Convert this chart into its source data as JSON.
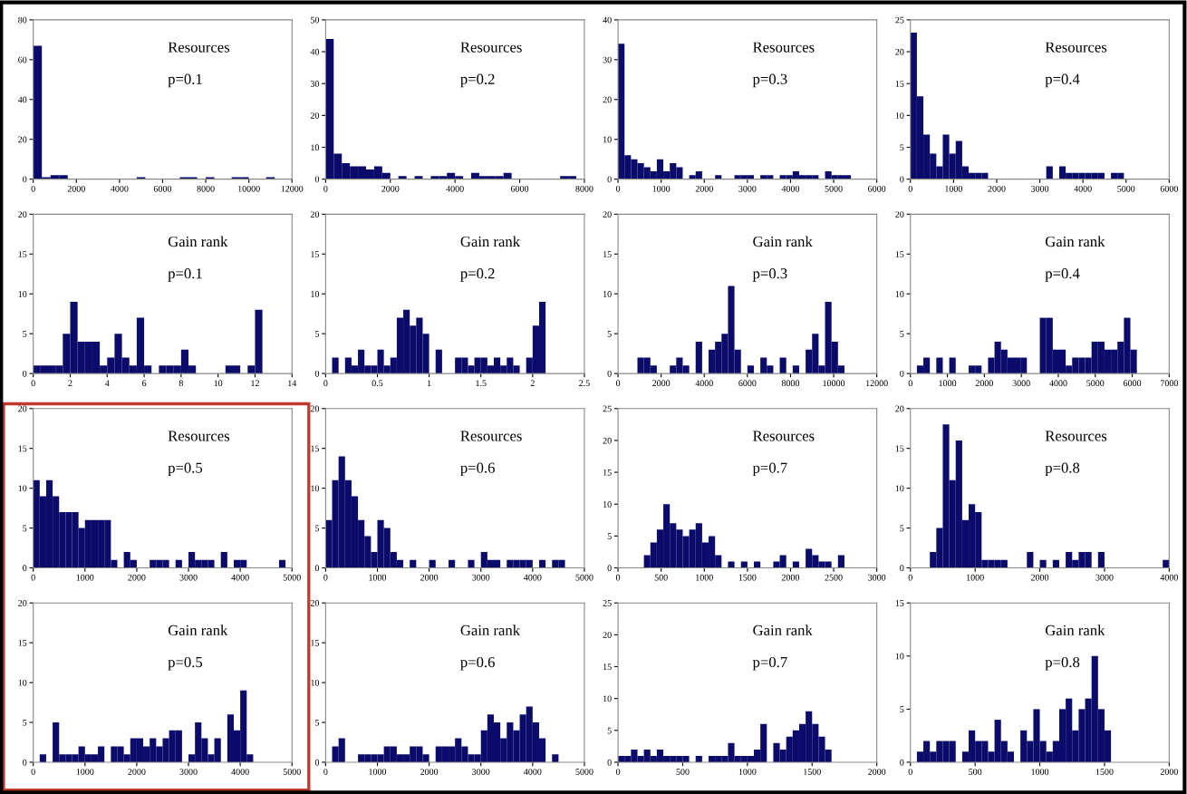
{
  "chart_data": [
    {
      "type": "histogram",
      "annotations": [
        "Resources",
        "p=0.1"
      ],
      "color": "#0b0b6b",
      "xlim": [
        0,
        12000
      ],
      "xticks": [
        0,
        2000,
        4000,
        6000,
        8000,
        10000,
        12000
      ],
      "ylim": [
        0,
        80
      ],
      "yticks": [
        0,
        20,
        40,
        60,
        80
      ],
      "bins": [
        0,
        400,
        800,
        1200,
        1600,
        2000,
        2400,
        2800,
        3200,
        3600,
        4000,
        4400,
        4800,
        5200,
        5600,
        6000,
        6400,
        6800,
        7200,
        7600,
        8000,
        8400,
        8800,
        9200,
        9600,
        10000,
        10400,
        10800,
        11200
      ],
      "values": [
        67,
        1,
        2,
        2,
        0,
        0,
        0,
        0,
        0,
        0,
        0,
        0,
        1,
        0,
        0,
        0,
        0,
        1,
        1,
        0,
        1,
        0,
        0,
        1,
        1,
        0,
        0,
        1
      ]
    },
    {
      "type": "histogram",
      "annotations": [
        "Resources",
        "p=0.2"
      ],
      "color": "#0b0b6b",
      "xlim": [
        0,
        8000
      ],
      "xticks": [
        0,
        2000,
        4000,
        6000,
        8000
      ],
      "ylim": [
        0,
        50
      ],
      "yticks": [
        0,
        10,
        20,
        30,
        40,
        50
      ],
      "bins": [
        0,
        250,
        500,
        750,
        1000,
        1250,
        1500,
        1750,
        2000,
        2250,
        2500,
        2750,
        3000,
        3250,
        3500,
        3750,
        4000,
        4250,
        4500,
        4750,
        5000,
        5250,
        5500,
        5750,
        6000,
        6250,
        6500,
        6750,
        7000,
        7250,
        7500,
        7750,
        8000
      ],
      "values": [
        44,
        8,
        5,
        4,
        4,
        3,
        4,
        2,
        0,
        1,
        0,
        1,
        0,
        1,
        1,
        2,
        1,
        0,
        2,
        1,
        1,
        1,
        2,
        0,
        0,
        0,
        0,
        0,
        0,
        1,
        1,
        0
      ]
    },
    {
      "type": "histogram",
      "annotations": [
        "Resources",
        "p=0.3"
      ],
      "color": "#0b0b6b",
      "xlim": [
        0,
        6000
      ],
      "xticks": [
        0,
        1000,
        2000,
        3000,
        4000,
        5000,
        6000
      ],
      "ylim": [
        0,
        40
      ],
      "yticks": [
        0,
        10,
        20,
        30,
        40
      ],
      "bins": [
        0,
        150,
        300,
        450,
        600,
        750,
        900,
        1050,
        1200,
        1350,
        1500,
        1650,
        1800,
        1950,
        2100,
        2250,
        2400,
        2550,
        2700,
        2850,
        3000,
        3150,
        3300,
        3450,
        3600,
        3750,
        3900,
        4050,
        4200,
        4350,
        4500,
        4650,
        4800,
        4950,
        5100,
        5250,
        5400,
        5550,
        5700,
        5850,
        6000
      ],
      "values": [
        34,
        6,
        5,
        4,
        3,
        2,
        5,
        2,
        4,
        3,
        0,
        1,
        2,
        0,
        0,
        1,
        0,
        0,
        1,
        1,
        1,
        0,
        1,
        1,
        0,
        1,
        1,
        2,
        1,
        1,
        1,
        0,
        2,
        1,
        1,
        1,
        0,
        0,
        0,
        0
      ]
    },
    {
      "type": "histogram",
      "annotations": [
        "Resources",
        "p=0.4"
      ],
      "color": "#0b0b6b",
      "xlim": [
        0,
        6000
      ],
      "xticks": [
        0,
        1000,
        2000,
        3000,
        4000,
        5000,
        6000
      ],
      "ylim": [
        0,
        25
      ],
      "yticks": [
        0,
        5,
        10,
        15,
        20,
        25
      ],
      "bins": [
        0,
        150,
        300,
        450,
        600,
        750,
        900,
        1050,
        1200,
        1350,
        1500,
        1650,
        1800,
        1950,
        2100,
        2250,
        2400,
        2550,
        2700,
        2850,
        3000,
        3150,
        3300,
        3450,
        3600,
        3750,
        3900,
        4050,
        4200,
        4350,
        4500,
        4650,
        4800,
        4950,
        5100,
        5250,
        5400,
        5550,
        5700,
        5850,
        6000
      ],
      "values": [
        23,
        13,
        7,
        4,
        2,
        7,
        4,
        6,
        2,
        1,
        1,
        1,
        0,
        0,
        0,
        0,
        0,
        0,
        0,
        0,
        0,
        2,
        0,
        2,
        1,
        1,
        1,
        1,
        1,
        1,
        0,
        1,
        1,
        0,
        0,
        0,
        0,
        0,
        0,
        0
      ]
    },
    {
      "type": "histogram",
      "annotations": [
        "Gain rank",
        "p=0.1"
      ],
      "color": "#0b0b6b",
      "xlim": [
        0,
        14
      ],
      "xticks": [
        0,
        2,
        4,
        6,
        8,
        10,
        12,
        14
      ],
      "ylim": [
        0,
        20
      ],
      "yticks": [
        0,
        5,
        10,
        15,
        20
      ],
      "bins": [
        0,
        0.4,
        0.8,
        1.2,
        1.6,
        2,
        2.4,
        2.8,
        3.2,
        3.6,
        4,
        4.4,
        4.8,
        5.2,
        5.6,
        6,
        6.4,
        6.8,
        7.2,
        7.6,
        8,
        8.4,
        8.8,
        9.2,
        9.6,
        10,
        10.4,
        10.8,
        11.2,
        11.6,
        12,
        12.4,
        12.8,
        13.2,
        13.6,
        14
      ],
      "values": [
        1,
        1,
        1,
        1,
        5,
        9,
        4,
        4,
        4,
        1,
        2,
        5,
        2,
        1,
        7,
        1,
        0,
        1,
        1,
        1,
        3,
        1,
        0,
        0,
        0,
        0,
        1,
        1,
        0,
        1,
        8,
        0,
        0,
        0,
        0
      ]
    },
    {
      "type": "histogram",
      "annotations": [
        "Gain rank",
        "p=0.2"
      ],
      "color": "#0b0b6b",
      "xlim": [
        0,
        2.5
      ],
      "xticks": [
        0,
        0.5,
        1,
        1.5,
        2,
        2.5
      ],
      "ylim": [
        0,
        20
      ],
      "yticks": [
        0,
        5,
        10,
        15,
        20
      ],
      "bins": [
        0,
        0.0625,
        0.125,
        0.1875,
        0.25,
        0.3125,
        0.375,
        0.4375,
        0.5,
        0.5625,
        0.625,
        0.6875,
        0.75,
        0.8125,
        0.875,
        0.9375,
        1,
        1.0625,
        1.125,
        1.1875,
        1.25,
        1.3125,
        1.375,
        1.4375,
        1.5,
        1.5625,
        1.625,
        1.6875,
        1.75,
        1.8125,
        1.875,
        1.9375,
        2,
        2.0625,
        2.125,
        2.1875,
        2.25,
        2.3125,
        2.375,
        2.4375,
        2.5
      ],
      "values": [
        0,
        2,
        0,
        2,
        1,
        3,
        1,
        1,
        3,
        1,
        2,
        7,
        8,
        6,
        7,
        5,
        0,
        3,
        0,
        0,
        2,
        2,
        1,
        2,
        2,
        1,
        2,
        1,
        2,
        1,
        0,
        2,
        6,
        9,
        0,
        0,
        0,
        0,
        0,
        0
      ]
    },
    {
      "type": "histogram",
      "annotations": [
        "Gain rank",
        "p=0.3"
      ],
      "color": "#0b0b6b",
      "xlim": [
        0,
        12000
      ],
      "xticks": [
        0,
        2000,
        4000,
        6000,
        8000,
        10000,
        12000
      ],
      "ylim": [
        0,
        20
      ],
      "yticks": [
        0,
        5,
        10,
        15,
        20
      ],
      "bins": [
        0,
        300,
        600,
        900,
        1200,
        1500,
        1800,
        2100,
        2400,
        2700,
        3000,
        3300,
        3600,
        3900,
        4200,
        4500,
        4800,
        5100,
        5400,
        5700,
        6000,
        6300,
        6600,
        6900,
        7200,
        7500,
        7800,
        8100,
        8400,
        8700,
        9000,
        9300,
        9600,
        9900,
        10200,
        10500,
        10800,
        11100,
        11400,
        11700,
        12000
      ],
      "values": [
        0,
        0,
        0,
        2,
        2,
        1,
        0,
        0,
        1,
        2,
        1,
        0,
        4,
        0,
        3,
        4,
        5,
        11,
        3,
        0,
        1,
        0,
        2,
        1,
        0,
        2,
        0,
        1,
        0,
        3,
        5,
        1,
        9,
        4,
        1,
        0,
        0,
        0,
        0,
        0
      ]
    },
    {
      "type": "histogram",
      "annotations": [
        "Gain rank",
        "p=0.4"
      ],
      "color": "#0b0b6b",
      "xlim": [
        0,
        7000
      ],
      "xticks": [
        0,
        1000,
        2000,
        3000,
        4000,
        5000,
        6000,
        7000
      ],
      "ylim": [
        0,
        20
      ],
      "yticks": [
        0,
        5,
        10,
        15,
        20
      ],
      "bins": [
        0,
        175,
        350,
        525,
        700,
        875,
        1050,
        1225,
        1400,
        1575,
        1750,
        1925,
        2100,
        2275,
        2450,
        2625,
        2800,
        2975,
        3150,
        3325,
        3500,
        3675,
        3850,
        4025,
        4200,
        4375,
        4550,
        4725,
        4900,
        5075,
        5250,
        5425,
        5600,
        5775,
        5950,
        6125,
        6300,
        6475,
        6650,
        6825,
        7000
      ],
      "values": [
        0,
        1,
        2,
        0,
        2,
        0,
        2,
        0,
        0,
        1,
        1,
        0,
        2,
        4,
        3,
        2,
        2,
        2,
        0,
        0,
        7,
        7,
        3,
        3,
        1,
        2,
        2,
        2,
        4,
        4,
        3,
        3,
        4,
        7,
        3,
        0,
        0,
        0,
        0,
        0
      ]
    },
    {
      "type": "histogram",
      "annotations": [
        "Resources",
        "p=0.5"
      ],
      "color": "#0b0b6b",
      "xlim": [
        0,
        5000
      ],
      "xticks": [
        0,
        1000,
        2000,
        3000,
        4000,
        5000
      ],
      "ylim": [
        0,
        20
      ],
      "yticks": [
        0,
        5,
        10,
        15,
        20
      ],
      "bins": [
        0,
        125,
        250,
        375,
        500,
        625,
        750,
        875,
        1000,
        1125,
        1250,
        1375,
        1500,
        1625,
        1750,
        1875,
        2000,
        2125,
        2250,
        2375,
        2500,
        2625,
        2750,
        2875,
        3000,
        3125,
        3250,
        3375,
        3500,
        3625,
        3750,
        3875,
        4000,
        4125,
        4250,
        4375,
        4500,
        4625,
        4750,
        4875,
        5000
      ],
      "values": [
        11,
        9,
        11,
        9,
        7,
        7,
        7,
        5,
        6,
        6,
        6,
        6,
        1,
        0,
        2,
        1,
        0,
        0,
        1,
        1,
        1,
        0,
        1,
        0,
        2,
        1,
        1,
        1,
        0,
        2,
        0,
        1,
        1,
        0,
        0,
        0,
        0,
        0,
        1,
        0
      ]
    },
    {
      "type": "histogram",
      "annotations": [
        "Resources",
        "p=0.6"
      ],
      "color": "#0b0b6b",
      "xlim": [
        0,
        5000
      ],
      "xticks": [
        0,
        1000,
        2000,
        3000,
        4000,
        5000
      ],
      "ylim": [
        0,
        20
      ],
      "yticks": [
        0,
        5,
        10,
        15,
        20
      ],
      "bins": [
        0,
        125,
        250,
        375,
        500,
        625,
        750,
        875,
        1000,
        1125,
        1250,
        1375,
        1500,
        1625,
        1750,
        1875,
        2000,
        2125,
        2250,
        2375,
        2500,
        2625,
        2750,
        2875,
        3000,
        3125,
        3250,
        3375,
        3500,
        3625,
        3750,
        3875,
        4000,
        4125,
        4250,
        4375,
        4500,
        4625,
        4750,
        4875,
        5000
      ],
      "values": [
        6,
        11,
        14,
        11,
        9,
        6,
        4,
        2,
        6,
        5,
        2,
        1,
        0,
        1,
        0,
        0,
        1,
        0,
        0,
        1,
        0,
        0,
        1,
        0,
        2,
        1,
        1,
        0,
        1,
        1,
        1,
        1,
        0,
        1,
        0,
        1,
        1,
        0,
        0,
        0
      ]
    },
    {
      "type": "histogram",
      "annotations": [
        "Resources",
        "p=0.7"
      ],
      "color": "#0b0b6b",
      "xlim": [
        0,
        3000
      ],
      "xticks": [
        0,
        500,
        1000,
        1500,
        2000,
        2500,
        3000
      ],
      "ylim": [
        0,
        25
      ],
      "yticks": [
        0,
        5,
        10,
        15,
        20,
        25
      ],
      "bins": [
        0,
        75,
        150,
        225,
        300,
        375,
        450,
        525,
        600,
        675,
        750,
        825,
        900,
        975,
        1050,
        1125,
        1200,
        1275,
        1350,
        1425,
        1500,
        1575,
        1650,
        1725,
        1800,
        1875,
        1950,
        2025,
        2100,
        2175,
        2250,
        2325,
        2400,
        2475,
        2550,
        2625,
        2700,
        2775,
        2850,
        2925,
        3000
      ],
      "values": [
        0,
        0,
        0,
        0,
        2,
        4,
        6,
        10,
        7,
        6,
        5,
        6,
        7,
        4,
        5,
        2,
        0,
        1,
        0,
        1,
        0,
        1,
        0,
        0,
        1,
        2,
        0,
        1,
        0,
        3,
        2,
        1,
        1,
        0,
        2,
        0,
        0,
        0,
        0,
        0
      ]
    },
    {
      "type": "histogram",
      "annotations": [
        "Resources",
        "p=0.8"
      ],
      "color": "#0b0b6b",
      "xlim": [
        0,
        4000
      ],
      "xticks": [
        0,
        1000,
        2000,
        3000,
        4000
      ],
      "ylim": [
        0,
        20
      ],
      "yticks": [
        0,
        5,
        10,
        15,
        20
      ],
      "bins": [
        0,
        100,
        200,
        300,
        400,
        500,
        600,
        700,
        800,
        900,
        1000,
        1100,
        1200,
        1300,
        1400,
        1500,
        1600,
        1700,
        1800,
        1900,
        2000,
        2100,
        2200,
        2300,
        2400,
        2500,
        2600,
        2700,
        2800,
        2900,
        3000,
        3100,
        3200,
        3300,
        3400,
        3500,
        3600,
        3700,
        3800,
        3900,
        4000
      ],
      "values": [
        0,
        0,
        0,
        2,
        5,
        18,
        11,
        16,
        6,
        8,
        7,
        1,
        1,
        1,
        1,
        0,
        0,
        0,
        2,
        0,
        1,
        0,
        1,
        0,
        2,
        1,
        2,
        2,
        0,
        2,
        0,
        0,
        0,
        0,
        0,
        0,
        0,
        0,
        0,
        1
      ]
    },
    {
      "type": "histogram",
      "annotations": [
        "Gain rank",
        "p=0.5"
      ],
      "color": "#0b0b6b",
      "xlim": [
        0,
        5000
      ],
      "xticks": [
        0,
        1000,
        2000,
        3000,
        4000,
        5000
      ],
      "ylim": [
        0,
        20
      ],
      "yticks": [
        0,
        5,
        10,
        15,
        20
      ],
      "bins": [
        0,
        125,
        250,
        375,
        500,
        625,
        750,
        875,
        1000,
        1125,
        1250,
        1375,
        1500,
        1625,
        1750,
        1875,
        2000,
        2125,
        2250,
        2375,
        2500,
        2625,
        2750,
        2875,
        3000,
        3125,
        3250,
        3375,
        3500,
        3625,
        3750,
        3875,
        4000,
        4125,
        4250,
        4375,
        4500,
        4625,
        4750,
        4875,
        5000
      ],
      "values": [
        0,
        1,
        0,
        5,
        1,
        1,
        1,
        2,
        1,
        1,
        2,
        0,
        2,
        2,
        1,
        3,
        3,
        2,
        3,
        2,
        3,
        4,
        4,
        0,
        1,
        5,
        3,
        1,
        3,
        0,
        6,
        4,
        9,
        1,
        0,
        0,
        0,
        0,
        0,
        0
      ]
    },
    {
      "type": "histogram",
      "annotations": [
        "Gain rank",
        "p=0.6"
      ],
      "color": "#0b0b6b",
      "xlim": [
        0,
        5000
      ],
      "xticks": [
        0,
        1000,
        2000,
        3000,
        4000,
        5000
      ],
      "ylim": [
        0,
        20
      ],
      "yticks": [
        0,
        5,
        10,
        15,
        20
      ],
      "bins": [
        0,
        125,
        250,
        375,
        500,
        625,
        750,
        875,
        1000,
        1125,
        1250,
        1375,
        1500,
        1625,
        1750,
        1875,
        2000,
        2125,
        2250,
        2375,
        2500,
        2625,
        2750,
        2875,
        3000,
        3125,
        3250,
        3375,
        3500,
        3625,
        3750,
        3875,
        4000,
        4125,
        4250,
        4375,
        4500,
        4625,
        4750,
        4875,
        5000
      ],
      "values": [
        0,
        2,
        3,
        0,
        0,
        1,
        1,
        1,
        1,
        2,
        2,
        1,
        1,
        2,
        2,
        1,
        0,
        2,
        2,
        2,
        3,
        2,
        1,
        1,
        4,
        6,
        5,
        3,
        5,
        4,
        6,
        7,
        5,
        3,
        0,
        1,
        0,
        0,
        0,
        0
      ]
    },
    {
      "type": "histogram",
      "annotations": [
        "Gain rank",
        "p=0.7"
      ],
      "color": "#0b0b6b",
      "xlim": [
        0,
        2000
      ],
      "xticks": [
        0,
        500,
        1000,
        1500,
        2000
      ],
      "ylim": [
        0,
        25
      ],
      "yticks": [
        0,
        5,
        10,
        15,
        20,
        25
      ],
      "bins": [
        0,
        50,
        100,
        150,
        200,
        250,
        300,
        350,
        400,
        450,
        500,
        550,
        600,
        650,
        700,
        750,
        800,
        850,
        900,
        950,
        1000,
        1050,
        1100,
        1150,
        1200,
        1250,
        1300,
        1350,
        1400,
        1450,
        1500,
        1550,
        1600,
        1650,
        1700,
        1750,
        1800,
        1850,
        1900,
        1950,
        2000
      ],
      "values": [
        1,
        1,
        2,
        1,
        2,
        1,
        2,
        1,
        1,
        1,
        1,
        0,
        1,
        0,
        1,
        1,
        1,
        3,
        1,
        1,
        1,
        2,
        6,
        0,
        3,
        2,
        4,
        5,
        6,
        8,
        6,
        4,
        2,
        0,
        0,
        0,
        0,
        0,
        0,
        0
      ]
    },
    {
      "type": "histogram",
      "annotations": [
        "Gain rank",
        "p=0.8"
      ],
      "color": "#0b0b6b",
      "xlim": [
        0,
        2000
      ],
      "xticks": [
        0,
        500,
        1000,
        1500,
        2000
      ],
      "ylim": [
        0,
        15
      ],
      "yticks": [
        0,
        5,
        10,
        15
      ],
      "bins": [
        0,
        50,
        100,
        150,
        200,
        250,
        300,
        350,
        400,
        450,
        500,
        550,
        600,
        650,
        700,
        750,
        800,
        850,
        900,
        950,
        1000,
        1050,
        1100,
        1150,
        1200,
        1250,
        1300,
        1350,
        1400,
        1450,
        1500,
        1550,
        1600,
        1650,
        1700,
        1750,
        1800,
        1850,
        1900,
        1950,
        2000
      ],
      "values": [
        0,
        1,
        2,
        1,
        2,
        2,
        2,
        0,
        1,
        3,
        2,
        2,
        1,
        4,
        2,
        1,
        0,
        3,
        2,
        5,
        2,
        1,
        2,
        5,
        6,
        3,
        5,
        6,
        10,
        5,
        3,
        0,
        0,
        0,
        0,
        0,
        0,
        0,
        0,
        0
      ]
    }
  ]
}
